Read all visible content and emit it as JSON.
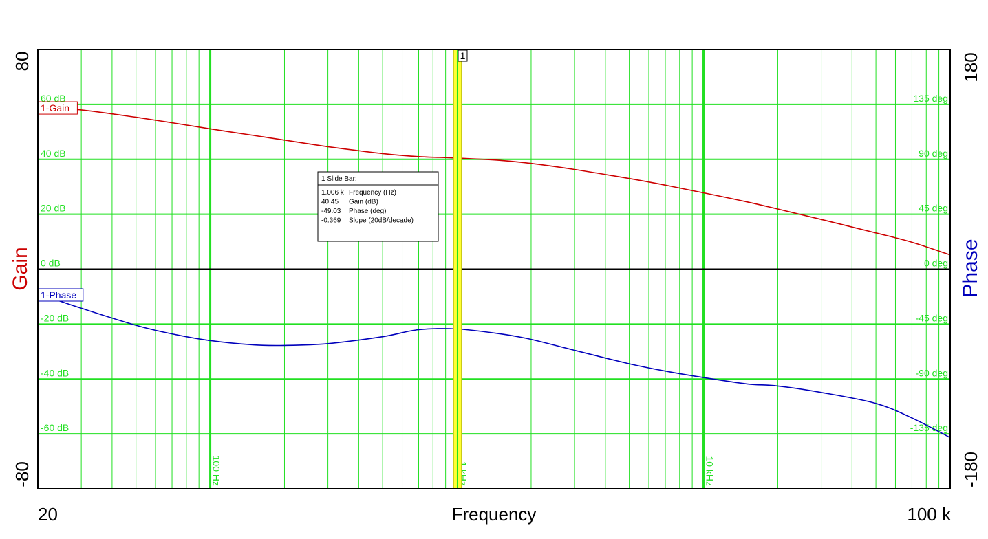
{
  "chart_data": {
    "type": "line",
    "title": "",
    "xlabel": "Frequency",
    "x_scale": "log",
    "xlim": [
      20,
      100000
    ],
    "xlim_labels": [
      "20",
      "100 k"
    ],
    "x_decade_labels": [
      {
        "x": 100,
        "label": "100 Hz"
      },
      {
        "x": 1000,
        "label": "1 kHz"
      },
      {
        "x": 10000,
        "label": "10 kHz"
      }
    ],
    "y_left": {
      "label": "Gain",
      "color": "#cc0000",
      "min_label": "-80",
      "max_label": "80",
      "range": [
        -80,
        80
      ],
      "ticks": [
        {
          "v": 60,
          "label": "60 dB"
        },
        {
          "v": 40,
          "label": "40 dB"
        },
        {
          "v": 20,
          "label": "20 dB"
        },
        {
          "v": 0,
          "label": "0 dB"
        },
        {
          "v": -20,
          "label": "-20 dB"
        },
        {
          "v": -40,
          "label": "-40 dB"
        },
        {
          "v": -60,
          "label": "-60 dB"
        }
      ]
    },
    "y_right": {
      "label": "Phase",
      "color": "#0000bb",
      "min_label": "-180",
      "max_label": "180",
      "range": [
        -180,
        180
      ],
      "ticks": [
        {
          "v": 135,
          "label": "135 deg"
        },
        {
          "v": 90,
          "label": "90 deg"
        },
        {
          "v": 45,
          "label": "45 deg"
        },
        {
          "v": 0,
          "label": "0 deg"
        },
        {
          "v": -45,
          "label": "-45 deg"
        },
        {
          "v": -90,
          "label": "-90 deg"
        },
        {
          "v": -135,
          "label": "-135 deg"
        }
      ]
    },
    "grid": true,
    "colors": {
      "grid": "#22e022",
      "slide_bar": "#ffff33"
    },
    "series": [
      {
        "name": "1-Gain",
        "axis": "left",
        "color": "#cc0000",
        "x": [
          20,
          30,
          50,
          70,
          100,
          150,
          200,
          300,
          500,
          700,
          1006,
          1500,
          2000,
          3000,
          5000,
          7000,
          10000,
          15000,
          20000,
          30000,
          50000,
          70000,
          100000
        ],
        "y": [
          59.2,
          58,
          55.3,
          53.3,
          51.1,
          48.7,
          47,
          44.6,
          42.1,
          41,
          40.45,
          39.6,
          38.5,
          36.3,
          33,
          30.6,
          27.8,
          24.5,
          21.9,
          18.1,
          13.2,
          9.8,
          5.2
        ]
      },
      {
        "name": "1-Phase",
        "axis": "right",
        "color": "#0000bb",
        "x": [
          20,
          30,
          50,
          70,
          100,
          150,
          200,
          300,
          500,
          700,
          1006,
          1500,
          2000,
          3000,
          5000,
          7000,
          10000,
          15000,
          20000,
          30000,
          50000,
          70000,
          100000
        ],
        "y": [
          -20,
          -32,
          -46,
          -53,
          -58.5,
          -62,
          -62.5,
          -61,
          -55.3,
          -49.6,
          -49.03,
          -53,
          -57.5,
          -66.5,
          -77.5,
          -83.5,
          -88.8,
          -94,
          -95.7,
          -101,
          -110,
          -122,
          -138
        ]
      }
    ],
    "series_tags": [
      "1-Gain",
      "1-Phase"
    ],
    "slide_bar": {
      "marker_label": "1",
      "x": 1006,
      "readout_title": "1  Slide Bar:",
      "readout": [
        {
          "value": "1.006 k",
          "label": "Frequency (Hz)"
        },
        {
          "value": "40.45",
          "label": "Gain (dB)"
        },
        {
          "value": "-49.03",
          "label": "Phase (deg)"
        },
        {
          "value": "-0.369",
          "label": "Slope (20dB/decade)"
        }
      ]
    }
  }
}
